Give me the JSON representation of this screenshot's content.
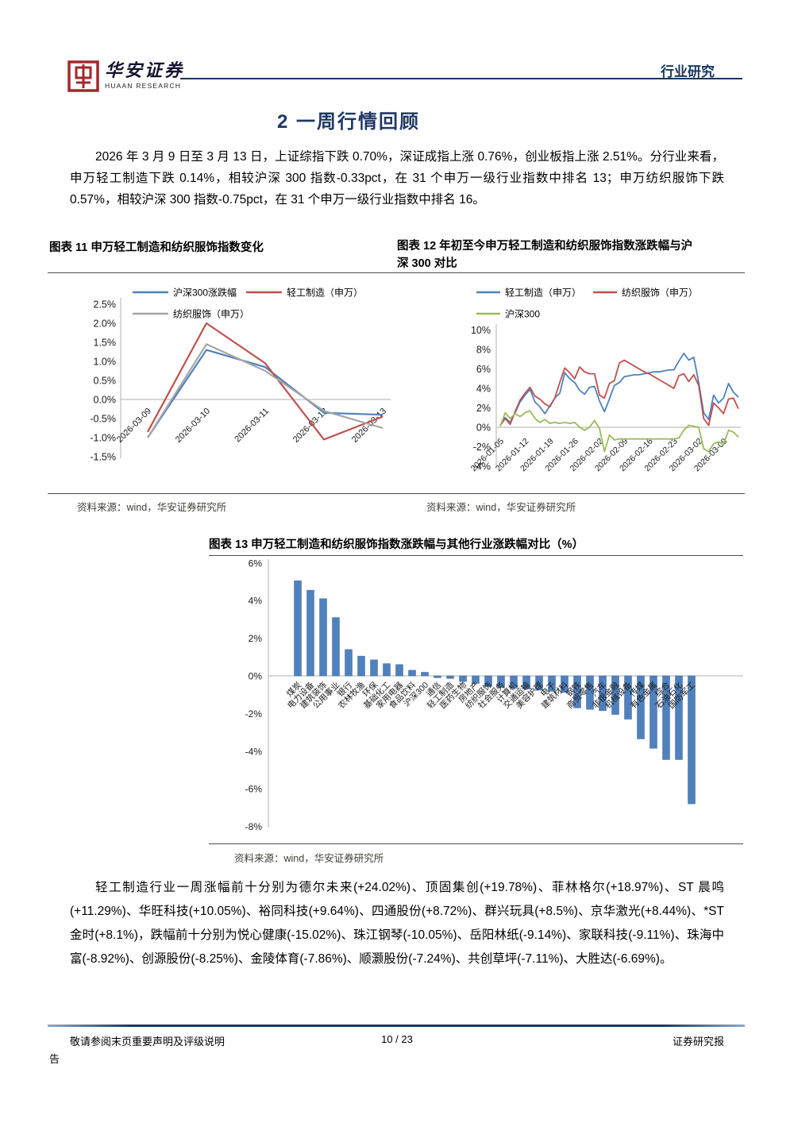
{
  "header": {
    "brand_cn": "华安证券",
    "brand_en": "HUAAN RESEARCH",
    "doc_type": "行业研究"
  },
  "section_title": "2 一周行情回顾",
  "paragraph_1": "2026 年 3 月 9 日至 3 月 13 日，上证综指下跌 0.70%，深证成指上涨 0.76%，创业板指上涨 2.51%。分行业来看，申万轻工制造下跌 0.14%，相较沪深 300 指数-0.33pct，在 31 个申万一级行业指数中排名 13；申万纺织服饰下跌 0.57%，相较沪深 300 指数-0.75pct，在 31 个申万一级行业指数中排名 16。",
  "figures": {
    "fig11": {
      "title": "图表 11 申万轻工制造和纺织服饰指数变化",
      "source": "资料来源：wind，华安证券研究所"
    },
    "fig12": {
      "title": "图表 12 年初至今申万轻工制造和纺织服饰指数涨跌幅与沪深 300 对比",
      "source": "资料来源：wind，华安证券研究所"
    },
    "fig13": {
      "title": "图表 13 申万轻工制造和纺织服饰指数涨跌幅与其他行业涨跌幅对比（%）",
      "source": "资料来源：wind，华安证券研究所"
    }
  },
  "paragraph_2": "轻工制造行业一周涨幅前十分别为德尔未来(+24.02%)、顶固集创(+19.78%)、菲林格尔(+18.97%)、ST 晨鸣(+11.29%)、华旺科技(+10.05%)、裕同科技(+9.64%)、四通股份(+8.72%)、群兴玩具(+8.5%)、京华激光(+8.44%)、*ST 金时(+8.1%)，跌幅前十分别为悦心健康(-15.02%)、珠江钢琴(-10.05%)、岳阳林纸(-9.14%)、家联科技(-9.11%)、珠海中富(-8.92%)、创源股份(-8.25%)、金陵体育(-7.86%)、顺灏股份(-7.24%)、共创草坪(-7.11%)、大胜达(-6.69%)。",
  "footer": {
    "disclaimer": "敬请参阅末页重要声明及评级说明",
    "page": "10 / 23",
    "report_type": "证券研究报",
    "report_type_wrap": "告"
  },
  "chart_data": [
    {
      "id": "fig11",
      "type": "line",
      "title": "申万轻工制造和纺织服饰指数变化",
      "categories": [
        "2026-03-09",
        "2026-03-10",
        "2026-03-11",
        "2026-03-12",
        "2026-03-13"
      ],
      "series": [
        {
          "name": "沪深300涨跌幅",
          "color": "#4F81BD",
          "values": [
            -1.0,
            1.3,
            0.85,
            -0.35,
            -0.4
          ]
        },
        {
          "name": "轻工制造（申万）",
          "color": "#C0504D",
          "values": [
            -0.85,
            2.0,
            0.95,
            -1.05,
            -0.45
          ]
        },
        {
          "name": "纺织服饰（申万）",
          "color": "#A6A6A6",
          "values": [
            -1.0,
            1.45,
            0.75,
            -0.3,
            -0.75
          ]
        }
      ],
      "yticks": [
        "2.5%",
        "2.0%",
        "1.5%",
        "1.0%",
        "0.5%",
        "0.0%",
        "-0.5%",
        "-1.0%",
        "-1.5%"
      ],
      "ylim": [
        -1.5,
        2.5
      ],
      "unit": "%",
      "grid": "zero-line-only",
      "legend_position": "top"
    },
    {
      "id": "fig12",
      "type": "line",
      "title": "年初至今申万轻工制造和纺织服饰指数涨跌幅与沪深300对比",
      "x_tick_labels": [
        "2026-01-05",
        "2026-01-12",
        "2026-01-19",
        "2026-01-26",
        "2026-02-02",
        "2026-02-09",
        "2026-02-16",
        "2026-02-23",
        "2026-03-02",
        "2026-03-09"
      ],
      "tick_every": 5,
      "series": [
        {
          "name": "轻工制造（申万）",
          "color": "#4F81BD",
          "values": [
            0.2,
            1.0,
            0.5,
            1.5,
            2.6,
            3.3,
            3.9,
            2.6,
            2.1,
            1.4,
            2.2,
            3.0,
            3.5,
            5.6,
            5.0,
            4.6,
            3.8,
            3.4,
            4.1,
            4.2,
            2.7,
            1.6,
            2.9,
            4.3,
            4.6,
            5.2,
            5.3,
            5.4,
            5.4,
            5.5,
            5.6,
            5.7,
            5.7,
            5.8,
            5.9,
            5.9,
            6.8,
            7.6,
            6.9,
            7.2,
            4.6,
            1.5,
            0.8,
            3.3,
            2.5,
            3.0,
            4.5,
            3.6,
            3.1
          ]
        },
        {
          "name": "纺织服饰（申万）",
          "color": "#C0504D",
          "values": [
            0.2,
            0.9,
            0.3,
            1.6,
            2.8,
            3.5,
            4.1,
            3.2,
            2.9,
            2.4,
            2.1,
            3.0,
            4.6,
            6.1,
            5.6,
            5.0,
            6.2,
            5.7,
            5.5,
            5.5,
            3.3,
            3.0,
            4.5,
            4.8,
            6.6,
            6.9,
            6.6,
            6.3,
            6.0,
            5.7,
            5.5,
            5.2,
            4.9,
            4.6,
            4.3,
            4.0,
            5.3,
            5.5,
            4.7,
            5.4,
            4.3,
            0.9,
            0.2,
            2.5,
            2.0,
            1.4,
            2.9,
            3.0,
            1.9
          ]
        },
        {
          "name": "沪深300",
          "color": "#9BBB59",
          "values": [
            0.1,
            1.5,
            0.9,
            1.4,
            1.1,
            1.5,
            1.7,
            0.9,
            0.5,
            0.8,
            0.4,
            0.5,
            0.4,
            0.5,
            0.4,
            0.5,
            0.0,
            -0.3,
            0.0,
            0.7,
            -0.1,
            -2.5,
            -0.8,
            -1.3,
            -1.2,
            -1.2,
            -1.2,
            -1.2,
            -1.2,
            -1.2,
            -1.2,
            -1.2,
            -1.2,
            -1.2,
            -1.2,
            -1.2,
            -1.1,
            -0.3,
            0.2,
            0.1,
            0.0,
            -2.2,
            -2.5,
            -1.7,
            -1.5,
            -1.8,
            -0.3,
            -0.5,
            -1.0
          ]
        }
      ],
      "yticks": [
        "10%",
        "8%",
        "6%",
        "4%",
        "2%",
        "0%",
        "-2%",
        "-4%"
      ],
      "ylim": [
        -4,
        10
      ],
      "unit": "%",
      "grid": "zero-line-only",
      "legend_position": "top"
    },
    {
      "id": "fig13",
      "type": "bar",
      "title": "申万轻工制造和纺织服饰指数涨跌幅与其他行业涨跌幅对比（%）",
      "categories": [
        "煤炭",
        "电力设备",
        "建筑装饰",
        "公用事业",
        "银行",
        "农林牧渔",
        "环保",
        "基础化工",
        "家用电器",
        "食品饮料",
        "沪深300",
        "通信",
        "轻工制造",
        "医药生物",
        "房地产",
        "纺织服饰",
        "社会服务",
        "计算机",
        "交通运输",
        "美容护理",
        "电子",
        "建筑材料",
        "钢铁",
        "商贸零售",
        "汽车",
        "非银金融",
        "机械设备",
        "传媒",
        "有色金属",
        "综合",
        "石油石化",
        "国防军工"
      ],
      "values": [
        5.05,
        4.55,
        4.1,
        3.1,
        1.4,
        1.05,
        0.85,
        0.65,
        0.6,
        0.3,
        0.19,
        -0.1,
        -0.14,
        -0.3,
        -0.4,
        -0.57,
        -0.62,
        -0.66,
        -0.7,
        -0.76,
        -0.82,
        -0.88,
        -1.7,
        -1.78,
        -1.85,
        -2.05,
        -2.3,
        -3.35,
        -3.85,
        -4.45,
        -4.45,
        -6.8
      ],
      "bar_color": "#4F81BD",
      "yticks": [
        "6%",
        "4%",
        "2%",
        "0%",
        "-2%",
        "-4%",
        "-6%",
        "-8%"
      ],
      "ylim": [
        -8,
        6
      ],
      "unit": "%",
      "grid": "zero-line-only"
    }
  ]
}
